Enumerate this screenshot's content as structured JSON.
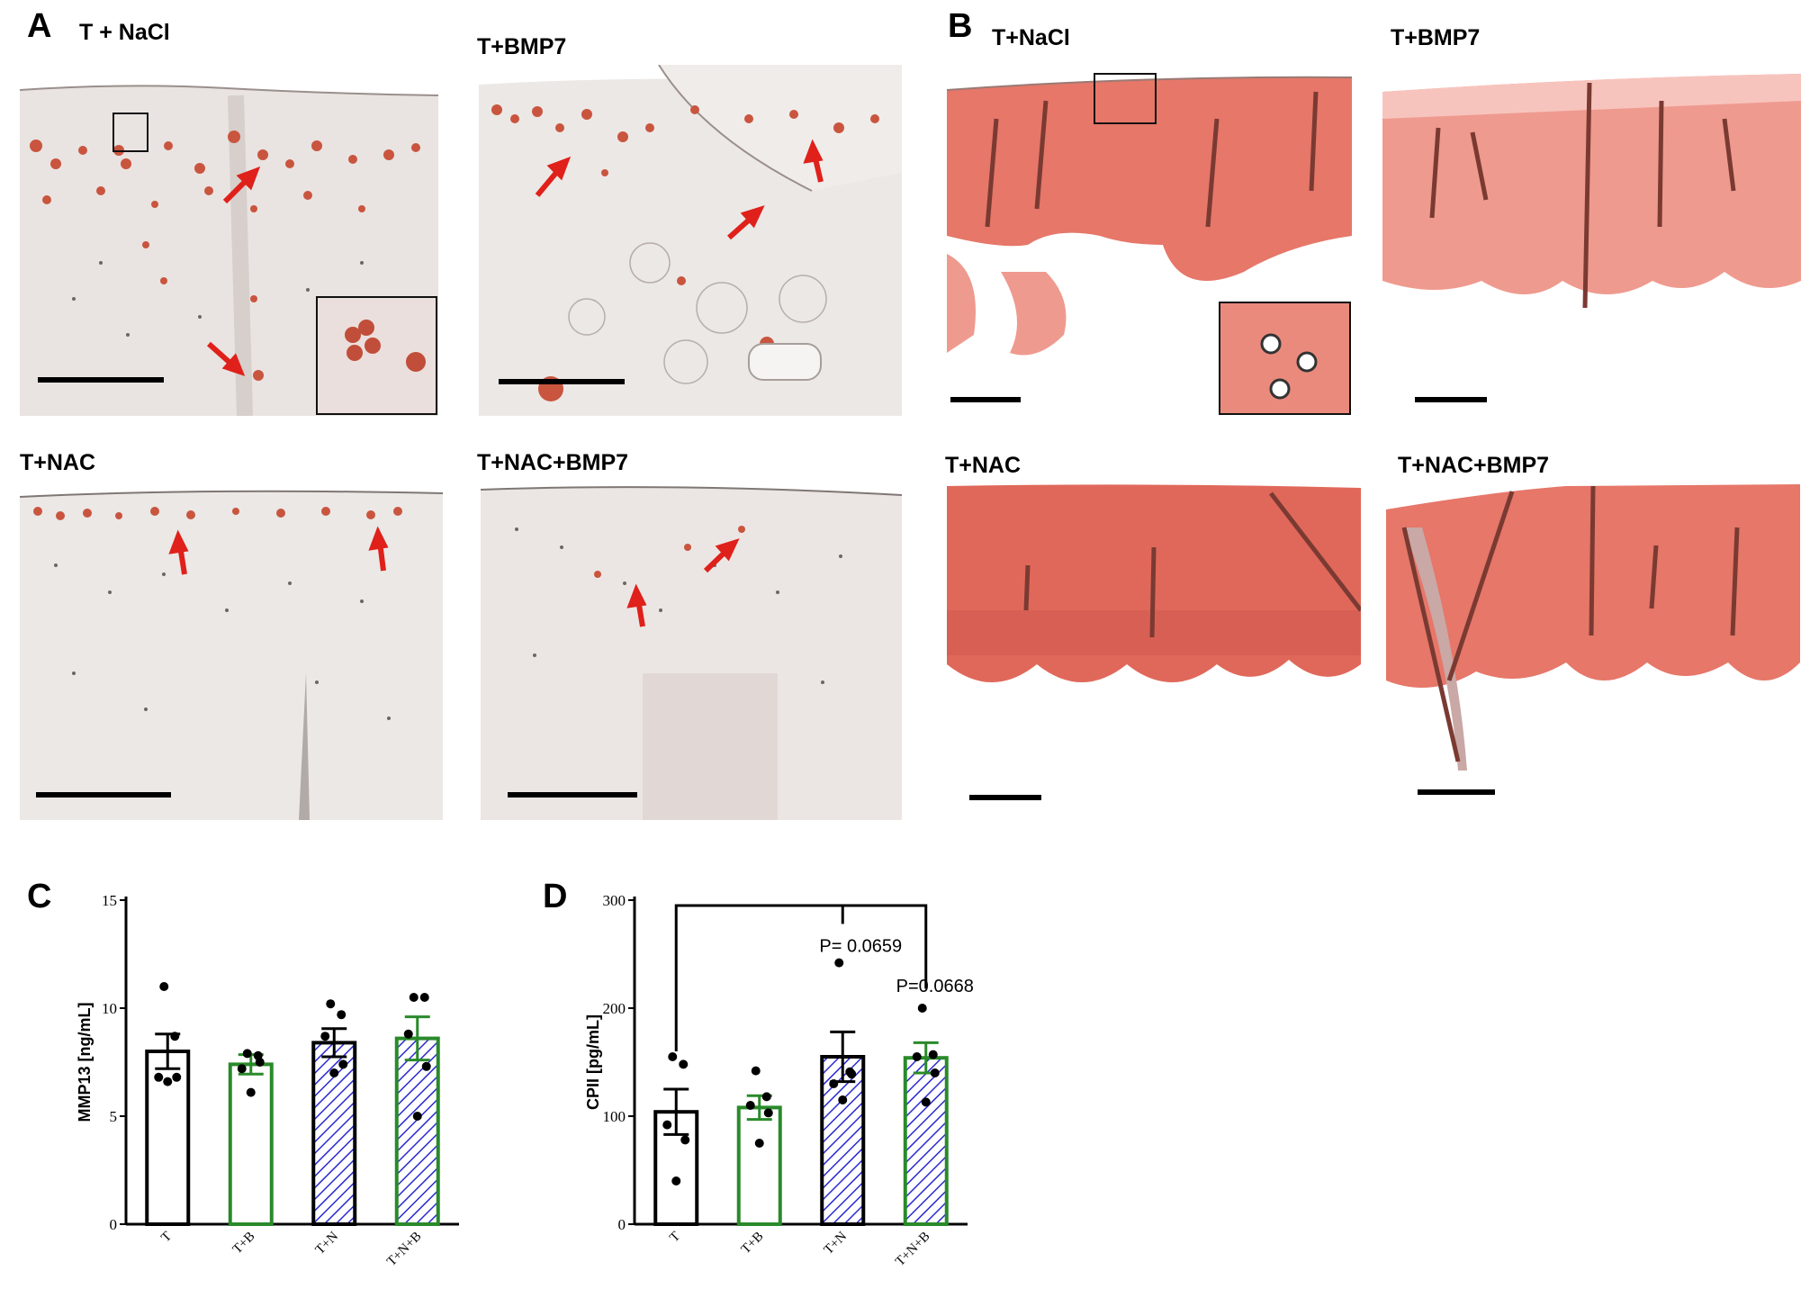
{
  "panels": {
    "A": {
      "letter": "A",
      "images": [
        {
          "title": "T + NaCl"
        },
        {
          "title": "T+BMP7"
        },
        {
          "title": "T+NAC"
        },
        {
          "title": "T+NAC+BMP7"
        }
      ]
    },
    "B": {
      "letter": "B",
      "images": [
        {
          "title": "T+NaCl"
        },
        {
          "title": "T+BMP7"
        },
        {
          "title": "T+NAC"
        },
        {
          "title": "T+NAC+BMP7"
        }
      ]
    },
    "C": {
      "letter": "C"
    },
    "D": {
      "letter": "D"
    }
  },
  "colors": {
    "arrow": "#e0201a",
    "stain_A_background": "#ece8e5",
    "stain_B_tissue": "#e67769",
    "bar_T": "#000000",
    "bar_TB": "#2a8a2a",
    "hatch": "#2a2ad0"
  },
  "chart_data": [
    {
      "type": "bar",
      "panel": "C",
      "ylabel": "MMP13 [ng/mL]",
      "ylim": [
        0,
        15
      ],
      "yticks": [
        "0",
        "5",
        "10",
        "15"
      ],
      "categories": [
        "T",
        "T+B",
        "T+N",
        "T+N+B"
      ],
      "values": [
        8.0,
        7.4,
        8.4,
        8.6
      ],
      "sem": [
        0.8,
        0.45,
        0.65,
        1.0
      ],
      "points": [
        [
          11.0,
          8.7,
          6.8,
          6.8,
          6.6
        ],
        [
          7.9,
          7.8,
          7.2,
          7.5,
          6.1
        ],
        [
          10.2,
          9.7,
          8.7,
          7.4,
          7.0
        ],
        [
          10.5,
          10.5,
          8.8,
          7.3,
          5.0
        ]
      ],
      "styles": [
        "open-black",
        "open-green",
        "hatched-black",
        "hatched-green"
      ]
    },
    {
      "type": "bar",
      "panel": "D",
      "ylabel": "CPII [pg/mL]",
      "ylim": [
        0,
        300
      ],
      "yticks": [
        "0",
        "100",
        "200",
        "300"
      ],
      "categories": [
        "T",
        "T+B",
        "T+N",
        "T+N+B"
      ],
      "values": [
        104,
        108,
        155,
        154
      ],
      "sem": [
        21,
        11,
        23,
        14
      ],
      "points": [
        [
          155,
          148,
          92,
          78,
          40
        ],
        [
          142,
          118,
          110,
          103,
          75
        ],
        [
          242,
          141,
          130,
          139,
          115
        ],
        [
          200,
          157,
          155,
          140,
          113
        ]
      ],
      "styles": [
        "open-black",
        "open-green",
        "hatched-black",
        "hatched-green"
      ],
      "annotations": [
        "P= 0.0659",
        "P=0.0668"
      ]
    }
  ]
}
